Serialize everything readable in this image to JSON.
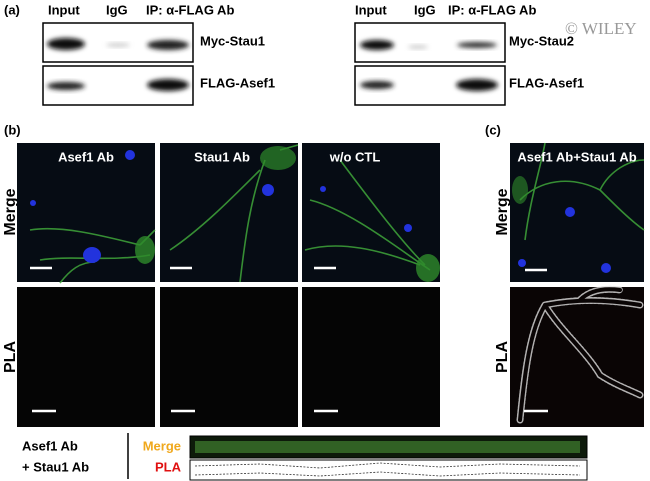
{
  "panel_a": {
    "label": "(a)",
    "watermark": "© WILEY",
    "blots": [
      {
        "lanes": [
          "Input",
          "IgG",
          "IP: α-FLAG Ab"
        ],
        "bands": [
          "Myc-Stau1",
          "FLAG-Asef1"
        ]
      },
      {
        "lanes": [
          "Input",
          "IgG",
          "IP: α-FLAG Ab"
        ],
        "bands": [
          "Myc-Stau2",
          "FLAG-Asef1"
        ]
      }
    ]
  },
  "panel_b": {
    "label": "(b)",
    "columns": [
      "Asef1 Ab",
      "Stau1 Ab",
      "w/o CTL"
    ],
    "rows": [
      "Merge",
      "PLA"
    ]
  },
  "panel_c": {
    "label": "(c)",
    "column": "Asef1 Ab+Stau1 Ab",
    "rows": [
      "Merge",
      "PLA"
    ]
  },
  "bottom": {
    "condition": [
      "Asef1 Ab",
      "+ Stau1 Ab"
    ],
    "legend": [
      "Merge",
      "PLA"
    ]
  }
}
